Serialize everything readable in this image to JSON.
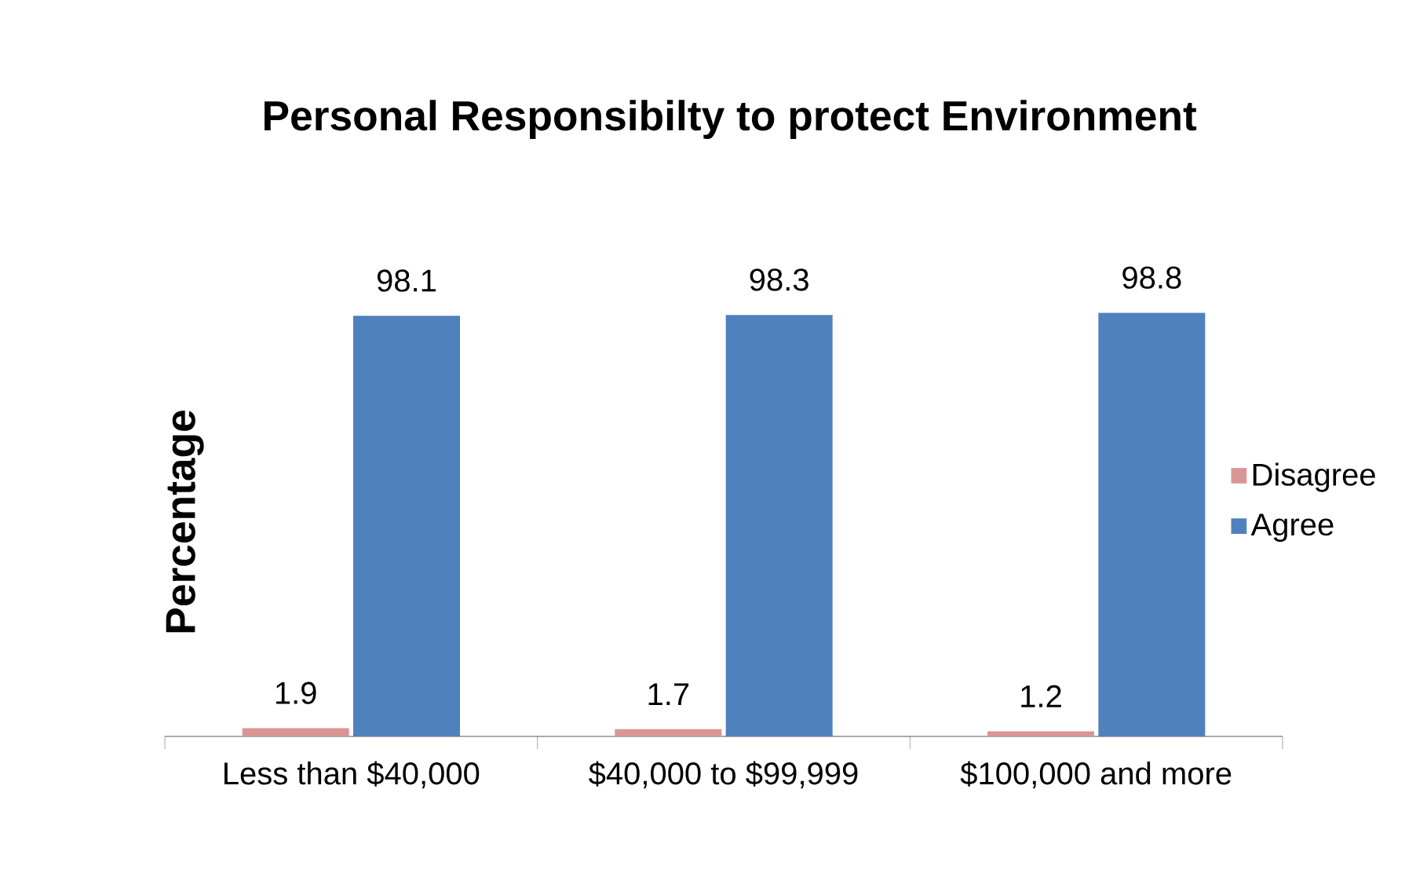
{
  "chart_data": {
    "type": "bar",
    "title": "Personal Responsibilty to protect Environment",
    "ylabel": "Percentage",
    "categories": [
      "Less than $40,000",
      "$40,000 to $99,999",
      "$100,000 and more"
    ],
    "series": [
      {
        "name": "Disagree",
        "color": "#d99694",
        "values": [
          1.9,
          1.7,
          1.2
        ]
      },
      {
        "name": "Agree",
        "color": "#4f81bd",
        "values": [
          98.1,
          98.3,
          98.8
        ]
      }
    ],
    "ylim": [
      0,
      100
    ],
    "data_labels": true,
    "legend": "right",
    "tick_labels": "x",
    "grid": false
  }
}
